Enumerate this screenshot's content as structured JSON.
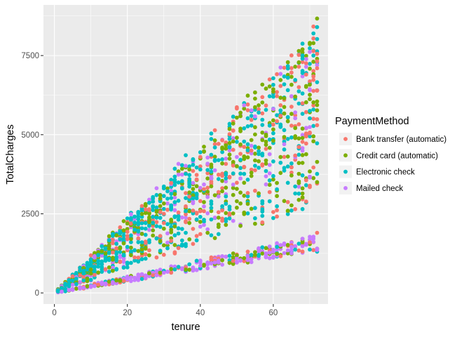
{
  "chart_data": {
    "type": "scatter",
    "title": "",
    "xlabel": "tenure",
    "ylabel": "TotalCharges",
    "xlim": [
      -3,
      75
    ],
    "ylim": [
      -350,
      9100
    ],
    "x_ticks": [
      0,
      20,
      40,
      60
    ],
    "x_tick_labels": [
      "0",
      "20",
      "40",
      "60"
    ],
    "y_ticks": [
      0,
      2500,
      5000,
      7500
    ],
    "y_tick_labels": [
      "0",
      "2500",
      "5000",
      "7500"
    ],
    "grid": true,
    "legend_position": "right",
    "legend_title": "PaymentMethod",
    "series": [
      {
        "name": "Bank transfer (automatic)",
        "color": "#F8766D"
      },
      {
        "name": "Credit card (automatic)",
        "color": "#7CAE00"
      },
      {
        "name": "Electronic check",
        "color": "#00BFC4"
      },
      {
        "name": "Mailed check",
        "color": "#C77CFF"
      }
    ],
    "point_model": {
      "lower_band_monthly_min": 18.5,
      "lower_band_monthly_max": 26,
      "upper_band_monthly_min": 40,
      "upper_band_monthly_max": 118,
      "tenure_min": 1,
      "tenure_max": 72
    },
    "points": [
      [
        1,
        45,
        "Electronic check"
      ],
      [
        1,
        85,
        "Electronic check"
      ],
      [
        2,
        150,
        "Electronic check"
      ],
      [
        3,
        260,
        "Electronic check"
      ],
      [
        2,
        40,
        "Mailed check"
      ],
      [
        4,
        90,
        "Mailed check"
      ],
      [
        5,
        110,
        "Mailed check"
      ],
      [
        6,
        450,
        "Electronic check"
      ],
      [
        8,
        160,
        "Mailed check"
      ],
      [
        8,
        700,
        "Electronic check"
      ],
      [
        10,
        220,
        "Mailed check"
      ],
      [
        10,
        900,
        "Electronic check"
      ],
      [
        12,
        260,
        "Bank transfer (automatic)"
      ],
      [
        12,
        1200,
        "Electronic check"
      ],
      [
        14,
        300,
        "Mailed check"
      ],
      [
        15,
        1400,
        "Credit card (automatic)"
      ],
      [
        16,
        340,
        "Mailed check"
      ],
      [
        18,
        1700,
        "Electronic check"
      ],
      [
        18,
        380,
        "Credit card (automatic)"
      ],
      [
        20,
        430,
        "Mailed check"
      ],
      [
        20,
        1800,
        "Bank transfer (automatic)"
      ],
      [
        22,
        2000,
        "Electronic check"
      ],
      [
        22,
        480,
        "Mailed check"
      ],
      [
        24,
        2200,
        "Electronic check"
      ],
      [
        25,
        1400,
        "Credit card (automatic)"
      ],
      [
        25,
        550,
        "Mailed check"
      ],
      [
        27,
        2400,
        "Electronic check"
      ],
      [
        28,
        2700,
        "Electronic check"
      ],
      [
        30,
        2500,
        "Bank transfer (automatic)"
      ],
      [
        30,
        640,
        "Mailed check"
      ],
      [
        32,
        3000,
        "Electronic check"
      ],
      [
        33,
        2100,
        "Credit card (automatic)"
      ],
      [
        35,
        3300,
        "Electronic check"
      ],
      [
        35,
        750,
        "Mailed check"
      ],
      [
        37,
        3500,
        "Electronic check"
      ],
      [
        38,
        2600,
        "Bank transfer (automatic)"
      ],
      [
        40,
        3900,
        "Electronic check"
      ],
      [
        40,
        860,
        "Mailed check"
      ],
      [
        42,
        3200,
        "Credit card (automatic)"
      ],
      [
        44,
        4200,
        "Electronic check"
      ],
      [
        45,
        960,
        "Mailed check"
      ],
      [
        46,
        3700,
        "Bank transfer (automatic)"
      ],
      [
        48,
        4600,
        "Electronic check"
      ],
      [
        50,
        1080,
        "Mailed check"
      ],
      [
        50,
        4000,
        "Credit card (automatic)"
      ],
      [
        52,
        5200,
        "Electronic check"
      ],
      [
        54,
        4500,
        "Bank transfer (automatic)"
      ],
      [
        55,
        1200,
        "Credit card (automatic)"
      ],
      [
        56,
        5700,
        "Electronic check"
      ],
      [
        58,
        5000,
        "Credit card (automatic)"
      ],
      [
        60,
        1300,
        "Mailed check"
      ],
      [
        60,
        6200,
        "Electronic check"
      ],
      [
        62,
        5600,
        "Bank transfer (automatic)"
      ],
      [
        64,
        6800,
        "Electronic check"
      ],
      [
        65,
        1450,
        "Mailed check"
      ],
      [
        66,
        6200,
        "Credit card (automatic)"
      ],
      [
        68,
        7400,
        "Electronic check"
      ],
      [
        69,
        6900,
        "Bank transfer (automatic)"
      ],
      [
        70,
        1600,
        "Bank transfer (automatic)"
      ],
      [
        70,
        7900,
        "Credit card (automatic)"
      ],
      [
        71,
        8200,
        "Electronic check"
      ],
      [
        72,
        8670,
        "Credit card (automatic)"
      ],
      [
        72,
        8400,
        "Electronic check"
      ],
      [
        72,
        1900,
        "Bank transfer (automatic)"
      ],
      [
        72,
        1400,
        "Mailed check"
      ],
      [
        72,
        7100,
        "Bank transfer (automatic)"
      ],
      [
        72,
        3500,
        "Credit card (automatic)"
      ],
      [
        72,
        5300,
        "Bank transfer (automatic)"
      ]
    ]
  }
}
